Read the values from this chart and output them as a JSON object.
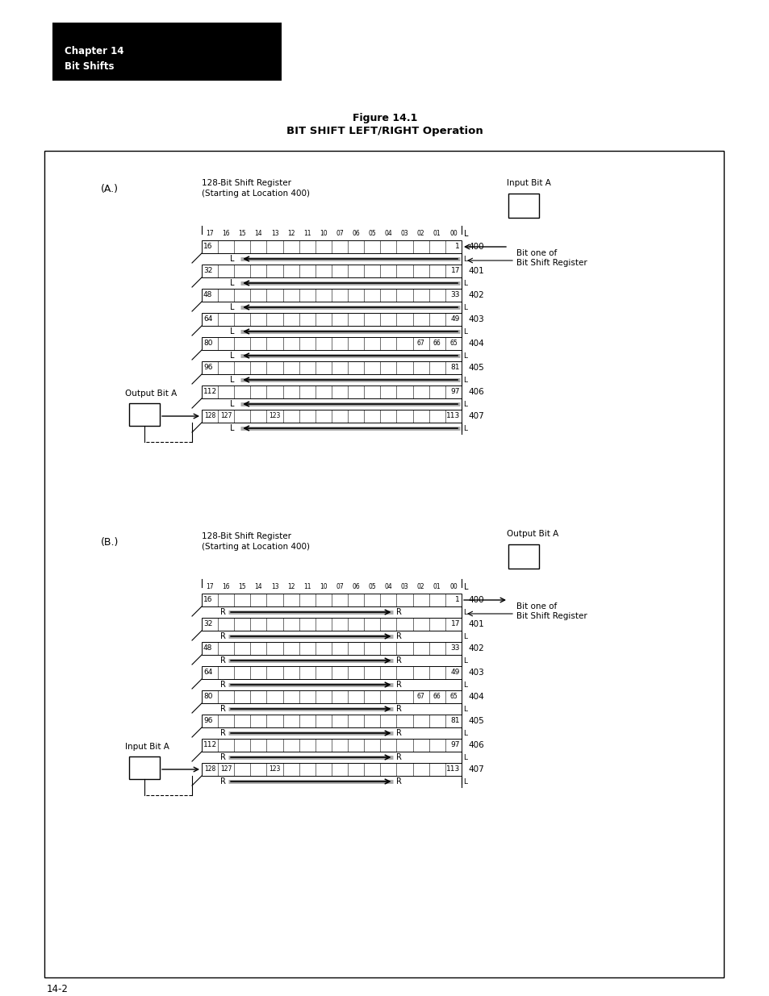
{
  "chapter_title": "Chapter 14",
  "chapter_subtitle": "Bit Shifts",
  "title_line1": "Figure 14.1",
  "title_line2": "BIT SHIFT LEFT/RIGHT Operation",
  "section_A_label": "(A.)",
  "section_B_label": "(B.)",
  "register_title": "128-Bit Shift Register",
  "register_subtitle": "(Starting at Location 400)",
  "bit_labels_top": [
    "17",
    "16",
    "15",
    "14",
    "13",
    "12",
    "11",
    "10",
    "07",
    "06",
    "05",
    "04",
    "03",
    "02",
    "01",
    "00"
  ],
  "row_left_labels": [
    "16",
    "32",
    "48",
    "64",
    "80",
    "96",
    "112",
    "128"
  ],
  "row_right_labels": [
    "1",
    "17",
    "33",
    "49",
    "65",
    "81",
    "97",
    "113"
  ],
  "row_numbers": [
    "400",
    "401",
    "402",
    "403",
    "404",
    "405",
    "406",
    "407"
  ],
  "row4_special": [
    "67",
    "66",
    "65"
  ],
  "row7_left": [
    "128",
    "127"
  ],
  "row7_mid": "123",
  "row7_right": "113",
  "input_bit_A": "Input Bit A",
  "output_bit_A": "Output Bit A",
  "output_bit_B": "Output Bit A",
  "input_bit_B": "Input Bit A",
  "bit_one_of": "Bit one of",
  "bit_shift_reg": "Bit Shift Register",
  "page_num": "14-2"
}
